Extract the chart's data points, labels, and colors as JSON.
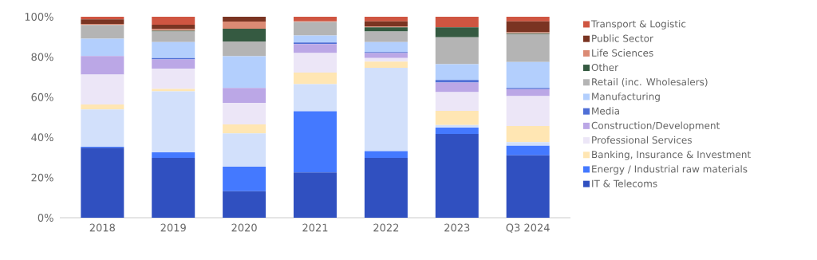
{
  "chart_data": {
    "type": "bar",
    "stacked": true,
    "legend": "right",
    "categories": [
      "2018",
      "2019",
      "2020",
      "2021",
      "2022",
      "2023",
      "Q3 2024"
    ],
    "ylim": [
      0,
      100
    ],
    "yticks": [
      {
        "value": 0,
        "label": "0%"
      },
      {
        "value": 20,
        "label": "20%"
      },
      {
        "value": 40,
        "label": "40%"
      },
      {
        "value": 60,
        "label": "60%"
      },
      {
        "value": 80,
        "label": "80%"
      },
      {
        "value": 100,
        "label": "100%"
      }
    ],
    "series": [
      {
        "name": "IT & Telecoms",
        "color": "#3050c0",
        "values": [
          34.8,
          29.8,
          13.2,
          22.5,
          29.8,
          41.7,
          31.1
        ]
      },
      {
        "name": "Energy / Industrial raw materials",
        "color": "#4479ff",
        "values": [
          0.5,
          2.7,
          12.2,
          30.5,
          3.3,
          3.1,
          4.7
        ]
      },
      {
        "color": "#d2e0fb",
        "values": [
          18.6,
          30.4,
          16.6,
          13.5,
          41.5,
          1.3,
          1.8
        ]
      },
      {
        "name": "Banking, Insurance & Investment",
        "color": "#ffe6b3",
        "values": [
          2.4,
          1.2,
          4.4,
          5.7,
          3.1,
          7.1,
          8.0
        ]
      },
      {
        "name": "Professional Services",
        "color": "#ece6f7",
        "values": [
          14.9,
          10.1,
          10.6,
          9.7,
          1.8,
          9.3,
          14.9
        ]
      },
      {
        "name": "Construction/Development",
        "color": "#bba7e6",
        "values": [
          9.3,
          4.6,
          7.6,
          4.5,
          2.4,
          4.8,
          3.5
        ]
      },
      {
        "name": "Media",
        "color": "#4f6fd6",
        "values": [
          0,
          0.7,
          0,
          0.8,
          0.5,
          1.3,
          0.6
        ]
      },
      {
        "name": "Manufacturing",
        "color": "#b3cffd",
        "values": [
          8.6,
          7.9,
          15.8,
          3.5,
          5.0,
          7.8,
          12.9
        ]
      },
      {
        "name": "Retail (inc. Wholesalers)",
        "color": "#b4b4b4",
        "values": [
          6.8,
          5.3,
          7.3,
          6.7,
          5.3,
          13.4,
          13.9
        ]
      },
      {
        "name": "Other",
        "color": "#355a41",
        "values": [
          0,
          0.4,
          6.3,
          0,
          2.0,
          4.9,
          0.4
        ]
      },
      {
        "name": "Life Sciences",
        "color": "#db8a74",
        "values": [
          0.5,
          0.7,
          3.6,
          0.3,
          0.4,
          0,
          0.5
        ]
      },
      {
        "name": "Public Sector",
        "color": "#7a3422",
        "values": [
          2.3,
          2.2,
          2.4,
          0,
          2.6,
          0,
          5.4
        ]
      },
      {
        "name": "Transport & Logistic",
        "color": "#cf5541",
        "values": [
          1.3,
          4.0,
          0,
          2.3,
          2.3,
          5.3,
          2.3
        ]
      }
    ]
  }
}
